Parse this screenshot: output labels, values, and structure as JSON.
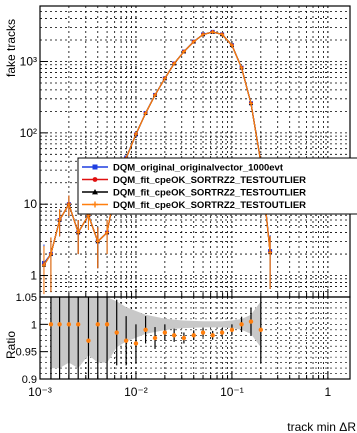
{
  "chart_data": [
    {
      "type": "line",
      "panel": "main",
      "ylabel": "fake tracks",
      "yscale": "log",
      "xscale": "log",
      "xlim": [
        0.001,
        0.3
      ],
      "ylim": [
        0.5,
        6000
      ],
      "grid": true,
      "legend_position": "middle-right",
      "yticks": [
        {
          "value": 1,
          "label": "1"
        },
        {
          "value": 10,
          "label": "10"
        },
        {
          "value": 100,
          "label": "10²"
        },
        {
          "value": 1000,
          "label": "10³"
        }
      ],
      "series": [
        {
          "name": "DQM_original_originalvector_1000evt",
          "color": "#1f3fe0",
          "marker": "square",
          "x": [
            0.0011,
            0.0013,
            0.0016,
            0.002,
            0.0025,
            0.0032,
            0.004,
            0.005,
            0.0063,
            0.0079,
            0.01,
            0.0126,
            0.0158,
            0.02,
            0.025,
            0.0316,
            0.04,
            0.05,
            0.063,
            0.079,
            0.1,
            0.126,
            0.158,
            0.2,
            0.25
          ],
          "y": [
            1.5,
            2,
            6,
            10,
            4,
            7,
            3,
            4,
            20,
            45,
            95,
            190,
            340,
            580,
            940,
            1380,
            1900,
            2400,
            2600,
            2400,
            1700,
            820,
            260,
            40,
            2.2
          ]
        },
        {
          "name": "DQM_fit_cpeOK_SORTRZ2_TESTOUTLIER",
          "color": "#e01010",
          "marker": "circle",
          "x": [
            0.0011,
            0.0013,
            0.0016,
            0.002,
            0.0025,
            0.0032,
            0.004,
            0.005,
            0.0063,
            0.0079,
            0.01,
            0.0126,
            0.0158,
            0.02,
            0.025,
            0.0316,
            0.04,
            0.05,
            0.063,
            0.079,
            0.1,
            0.126,
            0.158,
            0.2,
            0.25
          ],
          "y": [
            1.4,
            2,
            6,
            10,
            4,
            7,
            3,
            4,
            20,
            44,
            96,
            188,
            338,
            578,
            935,
            1375,
            1895,
            2390,
            2590,
            2395,
            1690,
            815,
            258,
            39,
            2.1
          ]
        },
        {
          "name": "DQM_fit_cpeOK_SORTRZ2_TESTOUTLIER",
          "color": "#000000",
          "marker": "triangle",
          "x": [
            0.0011,
            0.0013,
            0.0016,
            0.002,
            0.0025,
            0.0032,
            0.004,
            0.005,
            0.0063,
            0.0079,
            0.01,
            0.0126,
            0.0158,
            0.02,
            0.025,
            0.0316,
            0.04,
            0.05,
            0.063,
            0.079,
            0.1,
            0.126,
            0.158,
            0.2,
            0.25
          ],
          "y": [
            1.4,
            2,
            6,
            10,
            4,
            7,
            3,
            4,
            20,
            44,
            96,
            188,
            338,
            578,
            935,
            1375,
            1895,
            2390,
            2590,
            2395,
            1690,
            815,
            258,
            39,
            2.1
          ]
        },
        {
          "name": "DQM_fit_cpeOK_SORTRZ2_TESTOUTLIER",
          "color": "#ff7f0e",
          "marker": "cross",
          "x": [
            0.0011,
            0.0013,
            0.0016,
            0.002,
            0.0025,
            0.0032,
            0.004,
            0.005,
            0.0063,
            0.0079,
            0.01,
            0.0126,
            0.0158,
            0.02,
            0.025,
            0.0316,
            0.04,
            0.05,
            0.063,
            0.079,
            0.1,
            0.126,
            0.158,
            0.2,
            0.25
          ],
          "y": [
            1.4,
            2,
            6,
            10,
            4,
            7,
            3,
            4,
            20,
            44,
            96,
            188,
            338,
            578,
            935,
            1375,
            1895,
            2390,
            2590,
            2395,
            1690,
            815,
            258,
            39,
            2.1
          ]
        }
      ]
    },
    {
      "type": "scatter",
      "panel": "ratio",
      "xlabel": "track min  ΔR",
      "ylabel": "Ratio",
      "xscale": "log",
      "xlim": [
        0.001,
        0.3
      ],
      "ylim": [
        0.9,
        1.05
      ],
      "grid": true,
      "xticks": [
        {
          "value": 0.001,
          "label": "10⁻³"
        },
        {
          "value": 0.01,
          "label": "10⁻²"
        },
        {
          "value": 0.1,
          "label": "10⁻¹"
        },
        {
          "value": 1,
          "label": "1"
        }
      ],
      "yticks": [
        {
          "value": 0.9,
          "label": "0.9"
        },
        {
          "value": 0.95,
          "label": "0.95"
        },
        {
          "value": 1,
          "label": "1"
        },
        {
          "value": 1.05,
          "label": "1.05"
        }
      ],
      "series": [
        {
          "name": "ratio",
          "color": "#ff7f0e",
          "marker": "circle",
          "x": [
            0.0013,
            0.0016,
            0.002,
            0.0025,
            0.0032,
            0.004,
            0.005,
            0.0063,
            0.0079,
            0.01,
            0.0126,
            0.0158,
            0.02,
            0.025,
            0.0316,
            0.04,
            0.05,
            0.063,
            0.079,
            0.1,
            0.126,
            0.158,
            0.2
          ],
          "y": [
            1.0,
            1.0,
            1.0,
            1.0,
            0.97,
            1.0,
            1.0,
            0.985,
            0.97,
            0.965,
            0.99,
            0.975,
            0.985,
            0.98,
            0.975,
            0.98,
            0.985,
            0.98,
            0.985,
            0.99,
            1.0,
            1.005,
            0.99
          ],
          "err": [
            0.12,
            0.12,
            0.1,
            0.12,
            0.08,
            0.1,
            0.1,
            0.06,
            0.045,
            0.035,
            0.025,
            0.02,
            0.015,
            0.012,
            0.01,
            0.009,
            0.008,
            0.008,
            0.008,
            0.01,
            0.014,
            0.025,
            0.06
          ]
        }
      ]
    }
  ]
}
